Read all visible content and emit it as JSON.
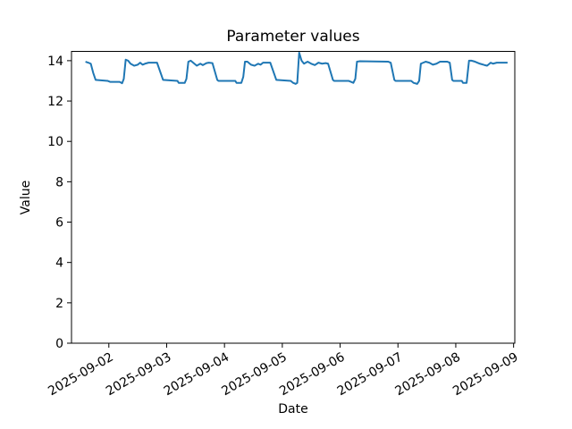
{
  "figure": {
    "background": "#ffffff",
    "plot_background": "#ffffff",
    "spine_color": "#000000"
  },
  "chart_data": {
    "type": "line",
    "title": "Parameter values",
    "xlabel": "Date",
    "ylabel": "Value",
    "grid": false,
    "legend": null,
    "x_unit": "hours since 2025-09-01 00:00",
    "xlim_hours": [
      8.5,
      192.5
    ],
    "ylim": [
      0,
      14.46
    ],
    "y_ticks": [
      0,
      2,
      4,
      6,
      8,
      10,
      12,
      14
    ],
    "x_ticks": [
      {
        "hour": 24,
        "label": "2025-09-02"
      },
      {
        "hour": 48,
        "label": "2025-09-03"
      },
      {
        "hour": 72,
        "label": "2025-09-04"
      },
      {
        "hour": 96,
        "label": "2025-09-05"
      },
      {
        "hour": 120,
        "label": "2025-09-06"
      },
      {
        "hour": 144,
        "label": "2025-09-07"
      },
      {
        "hour": 168,
        "label": "2025-09-08"
      },
      {
        "hour": 192,
        "label": "2025-09-09"
      }
    ],
    "x_tick_rotation_deg": -30,
    "series": [
      {
        "name": "Parameter values",
        "color": "#1f77b4",
        "line_width": 2,
        "points": [
          [
            14.3,
            13.95
          ],
          [
            15.5,
            13.9
          ],
          [
            16.5,
            13.85
          ],
          [
            17.5,
            13.4
          ],
          [
            18.5,
            13.05
          ],
          [
            23.5,
            13.0
          ],
          [
            24.5,
            12.95
          ],
          [
            28.5,
            12.95
          ],
          [
            29.5,
            12.88
          ],
          [
            30.2,
            13.1
          ],
          [
            31.0,
            14.05
          ],
          [
            32.0,
            14.0
          ],
          [
            33.0,
            13.85
          ],
          [
            34.5,
            13.75
          ],
          [
            36.0,
            13.8
          ],
          [
            37.0,
            13.9
          ],
          [
            38.0,
            13.8
          ],
          [
            39.0,
            13.85
          ],
          [
            40.5,
            13.9
          ],
          [
            44.0,
            13.9
          ],
          [
            46.5,
            13.05
          ],
          [
            52.5,
            13.0
          ],
          [
            53.0,
            12.9
          ],
          [
            55.5,
            12.9
          ],
          [
            56.2,
            13.1
          ],
          [
            57.0,
            13.95
          ],
          [
            58.0,
            14.0
          ],
          [
            59.5,
            13.85
          ],
          [
            60.5,
            13.75
          ],
          [
            62.0,
            13.85
          ],
          [
            63.0,
            13.78
          ],
          [
            64.5,
            13.88
          ],
          [
            65.5,
            13.9
          ],
          [
            67.0,
            13.88
          ],
          [
            69.0,
            13.05
          ],
          [
            69.5,
            13.0
          ],
          [
            76.5,
            13.0
          ],
          [
            77.0,
            12.9
          ],
          [
            79.0,
            12.9
          ],
          [
            79.8,
            13.2
          ],
          [
            80.5,
            13.95
          ],
          [
            81.5,
            13.95
          ],
          [
            83.0,
            13.8
          ],
          [
            84.5,
            13.75
          ],
          [
            86.0,
            13.85
          ],
          [
            87.0,
            13.8
          ],
          [
            88.0,
            13.9
          ],
          [
            91.0,
            13.9
          ],
          [
            93.5,
            13.05
          ],
          [
            99.5,
            13.0
          ],
          [
            100.5,
            12.9
          ],
          [
            101.5,
            12.85
          ],
          [
            102.2,
            12.9
          ],
          [
            103.0,
            14.4
          ],
          [
            104.0,
            14.0
          ],
          [
            105.0,
            13.85
          ],
          [
            106.5,
            13.95
          ],
          [
            108.0,
            13.85
          ],
          [
            109.5,
            13.78
          ],
          [
            111.0,
            13.9
          ],
          [
            112.5,
            13.85
          ],
          [
            114.0,
            13.88
          ],
          [
            115.0,
            13.85
          ],
          [
            117.0,
            13.05
          ],
          [
            117.5,
            13.0
          ],
          [
            123.5,
            13.0
          ],
          [
            124.5,
            12.95
          ],
          [
            125.5,
            12.9
          ],
          [
            126.3,
            13.1
          ],
          [
            127.0,
            13.95
          ],
          [
            128.0,
            13.97
          ],
          [
            140.0,
            13.95
          ],
          [
            141.0,
            13.9
          ],
          [
            142.5,
            13.05
          ],
          [
            143.0,
            13.0
          ],
          [
            149.5,
            13.0
          ],
          [
            150.5,
            12.9
          ],
          [
            152.0,
            12.85
          ],
          [
            152.8,
            13.0
          ],
          [
            153.5,
            13.85
          ],
          [
            154.5,
            13.9
          ],
          [
            155.5,
            13.95
          ],
          [
            157.0,
            13.9
          ],
          [
            158.5,
            13.8
          ],
          [
            160.0,
            13.85
          ],
          [
            161.5,
            13.95
          ],
          [
            164.5,
            13.95
          ],
          [
            165.5,
            13.9
          ],
          [
            166.5,
            13.05
          ],
          [
            167.0,
            13.0
          ],
          [
            170.5,
            13.0
          ],
          [
            171.0,
            12.9
          ],
          [
            172.5,
            12.9
          ],
          [
            173.5,
            14.0
          ],
          [
            174.5,
            14.0
          ],
          [
            176.0,
            13.95
          ],
          [
            178.0,
            13.85
          ],
          [
            180.0,
            13.78
          ],
          [
            181.0,
            13.75
          ],
          [
            182.5,
            13.9
          ],
          [
            183.5,
            13.85
          ],
          [
            185.0,
            13.9
          ],
          [
            189.5,
            13.9
          ]
        ]
      }
    ]
  }
}
